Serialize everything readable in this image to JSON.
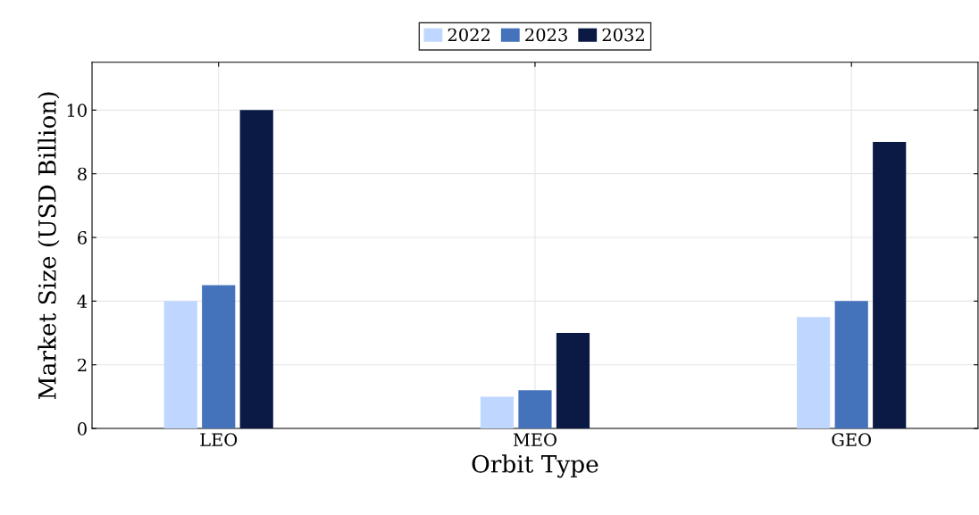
{
  "chart_data": {
    "type": "bar",
    "xlabel": "Orbit Type",
    "ylabel": "Market Size (USD Billion)",
    "categories": [
      "LEO",
      "MEO",
      "GEO"
    ],
    "series": [
      {
        "name": "2022",
        "color": "#bfd7ff",
        "values": [
          4,
          1,
          3.5
        ]
      },
      {
        "name": "2023",
        "color": "#4472bb",
        "values": [
          4.5,
          1.2,
          4
        ]
      },
      {
        "name": "2032",
        "color": "#0a1a45",
        "values": [
          10,
          3,
          9
        ]
      }
    ],
    "ylim": [
      0,
      11.5
    ],
    "yticks": [
      0,
      2,
      4,
      6,
      8,
      10
    ],
    "grid": true,
    "legend": "top"
  }
}
